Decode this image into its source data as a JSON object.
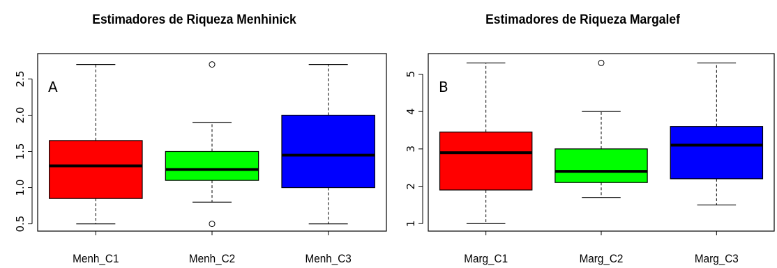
{
  "chart_data": [
    {
      "type": "box",
      "title": "Estimadores de Riqueza Menhinick",
      "panel_label": "A",
      "categories": [
        "Menh_C1",
        "Menh_C2",
        "Menh_C3"
      ],
      "colors": [
        "#ff0000",
        "#00ff00",
        "#0000ff"
      ],
      "boxes": [
        {
          "min": 0.5,
          "q1": 0.85,
          "median": 1.3,
          "q3": 1.65,
          "max": 2.7,
          "outliers": []
        },
        {
          "min": 0.8,
          "q1": 1.1,
          "median": 1.25,
          "q3": 1.5,
          "max": 1.9,
          "outliers": [
            0.5,
            2.7
          ]
        },
        {
          "min": 0.5,
          "q1": 1.0,
          "median": 1.45,
          "q3": 2.0,
          "max": 2.7,
          "outliers": []
        }
      ],
      "yticks": [
        0.5,
        1.0,
        1.5,
        2.0,
        2.5
      ],
      "ytick_labels": [
        "0.5",
        "1.0",
        "1.5",
        "2.0",
        "2.5"
      ],
      "ylim": [
        0.4,
        2.85
      ]
    },
    {
      "type": "box",
      "title": "Estimadores de Riqueza Margalef",
      "panel_label": "B",
      "categories": [
        "Marg_C1",
        "Marg_C2",
        "Marg_C3"
      ],
      "colors": [
        "#ff0000",
        "#00ff00",
        "#0000ff"
      ],
      "boxes": [
        {
          "min": 1.0,
          "q1": 1.9,
          "median": 2.9,
          "q3": 3.45,
          "max": 5.3,
          "outliers": []
        },
        {
          "min": 1.7,
          "q1": 2.1,
          "median": 2.4,
          "q3": 3.0,
          "max": 4.0,
          "outliers": [
            5.3
          ]
        },
        {
          "min": 1.5,
          "q1": 2.2,
          "median": 3.1,
          "q3": 3.6,
          "max": 5.3,
          "outliers": []
        }
      ],
      "yticks": [
        1,
        2,
        3,
        4,
        5
      ],
      "ytick_labels": [
        "1",
        "2",
        "3",
        "4",
        "5"
      ],
      "ylim": [
        0.8,
        5.55
      ]
    }
  ]
}
